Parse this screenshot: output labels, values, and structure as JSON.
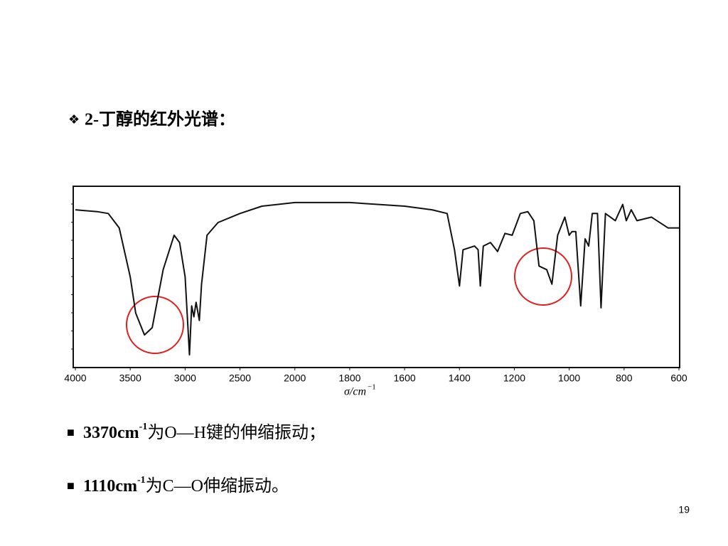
{
  "heading": {
    "bullet": "❖",
    "text": "2-丁醇的红外光谱："
  },
  "chart_data": {
    "type": "line",
    "x": [
      4000,
      3800,
      3700,
      3600,
      3500,
      3450,
      3370,
      3300,
      3200,
      3100,
      3050,
      3000,
      2960,
      2940,
      2920,
      2900,
      2870,
      2850,
      2800,
      2700,
      2500,
      2300,
      2000,
      1800,
      1600,
      1500,
      1445,
      1418,
      1400,
      1387,
      1366,
      1345,
      1332,
      1324,
      1313,
      1287,
      1261,
      1234,
      1208,
      1178,
      1151,
      1129,
      1110,
      1082,
      1063,
      1042,
      1016,
      1000,
      990,
      976,
      958,
      942,
      929,
      916,
      897,
      884,
      868,
      832,
      805,
      792,
      774,
      753,
      700,
      640,
      600
    ],
    "series": [
      {
        "color": "#111111",
        "values": [
          87,
          86,
          85,
          77,
          50,
          30,
          18,
          22,
          54,
          73,
          69,
          50,
          7,
          34,
          28,
          36,
          26,
          46,
          73,
          80,
          85,
          89,
          91,
          91,
          89,
          87,
          85,
          65,
          45,
          65,
          66,
          67,
          65,
          45,
          67,
          69,
          64,
          74,
          73,
          85,
          86,
          81,
          56,
          54,
          46,
          73,
          83,
          73,
          75,
          75,
          34,
          71,
          67,
          85,
          85,
          33,
          85,
          81,
          90,
          81,
          87,
          81,
          83,
          77,
          77
        ]
      }
    ],
    "xlim": [
      4000,
      600
    ],
    "ylim": [
      0,
      100
    ],
    "xticks": [
      4000,
      3500,
      3000,
      2500,
      2000,
      1800,
      1600,
      1400,
      1200,
      1000,
      800,
      600
    ],
    "x_label": {
      "main": "σ/cm",
      "sup": "−1"
    }
  },
  "notes": [
    {
      "bullet": "■",
      "num": "3370cm",
      "sup": "-1",
      "text": "为O—H键的伸缩振动；"
    },
    {
      "bullet": "■",
      "num": "1110cm",
      "sup": "-1",
      "text": "为C—O伸缩振动。"
    }
  ],
  "page_number": "19"
}
